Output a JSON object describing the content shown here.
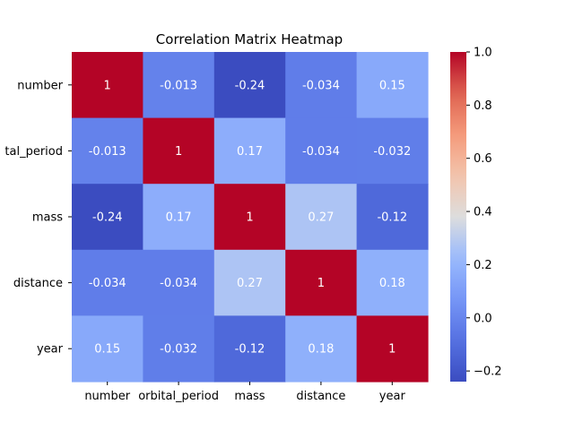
{
  "chart_data": {
    "type": "heatmap",
    "title": "Correlation Matrix Heatmap",
    "x_categories": [
      "number",
      "orbital_period",
      "mass",
      "distance",
      "year"
    ],
    "y_categories": [
      "number",
      "orbital_period",
      "mass",
      "distance",
      "year"
    ],
    "y_tick_labels_visible": [
      "number",
      "tal_period",
      "mass",
      "distance",
      "year"
    ],
    "values": [
      [
        1,
        -0.013,
        -0.24,
        -0.034,
        0.15
      ],
      [
        -0.013,
        1,
        0.17,
        -0.034,
        -0.032
      ],
      [
        -0.24,
        0.17,
        1,
        0.27,
        -0.12
      ],
      [
        -0.034,
        -0.034,
        0.27,
        1,
        0.18
      ],
      [
        0.15,
        -0.032,
        -0.12,
        0.18,
        1
      ]
    ],
    "value_labels": [
      [
        "1",
        "-0.013",
        "-0.24",
        "-0.034",
        "0.15"
      ],
      [
        "-0.013",
        "1",
        "0.17",
        "-0.034",
        "-0.032"
      ],
      [
        "-0.24",
        "0.17",
        "1",
        "0.27",
        "-0.12"
      ],
      [
        "-0.034",
        "-0.034",
        "0.27",
        "1",
        "0.18"
      ],
      [
        "0.15",
        "-0.032",
        "-0.12",
        "0.18",
        "1"
      ]
    ],
    "colormap": "coolwarm",
    "colorbar": {
      "vmin": -0.24,
      "vmax": 1.0,
      "ticks": [
        -0.2,
        0.0,
        0.2,
        0.4,
        0.6,
        0.8,
        1.0
      ],
      "tick_labels": [
        "−0.2",
        "0.0",
        "0.2",
        "0.4",
        "0.6",
        "0.8",
        "1.0"
      ]
    },
    "grid": false,
    "legend": "colorbar-right"
  }
}
